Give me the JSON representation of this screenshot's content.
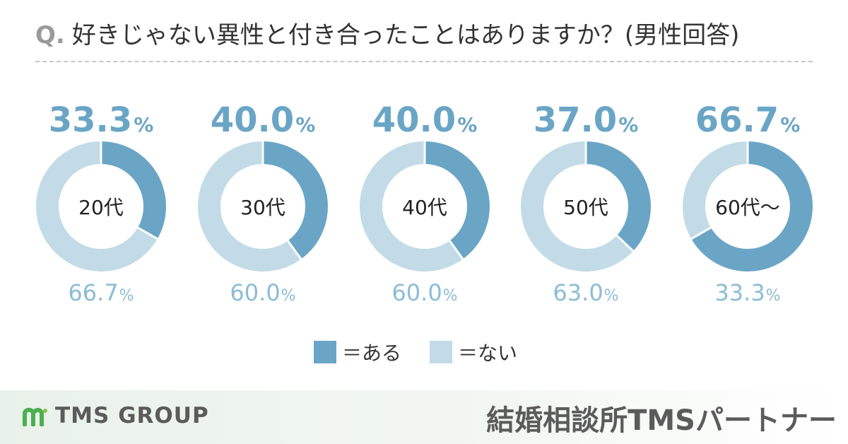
{
  "question": {
    "prefix": "Q.",
    "text": "好きじゃない異性と付き合ったことはありますか？(男性回答)"
  },
  "colors": {
    "yes": "#6aa5c6",
    "no": "#c2dbe7",
    "yes_text": "#6aa5c6",
    "no_text": "#8cbcd6"
  },
  "chart_data": {
    "type": "pie",
    "variant": "donut",
    "categories": [
      "20代",
      "30代",
      "40代",
      "50代",
      "60代～"
    ],
    "series": [
      {
        "name": "＝ある",
        "values": [
          33.3,
          40.0,
          40.0,
          37.0,
          66.7
        ]
      },
      {
        "name": "＝ない",
        "values": [
          66.7,
          60.0,
          60.0,
          63.0,
          33.3
        ]
      }
    ],
    "yes_labels": [
      "33.3",
      "40.0",
      "40.0",
      "37.0",
      "66.7"
    ],
    "no_labels": [
      "66.7",
      "60.0",
      "60.0",
      "63.0",
      "33.3"
    ],
    "unit": "%"
  },
  "legend": {
    "yes_label": "＝ある",
    "no_label": "＝ない"
  },
  "footer": {
    "brand": "TMS GROUP",
    "agency": "結婚相談所TMSパートナー"
  }
}
